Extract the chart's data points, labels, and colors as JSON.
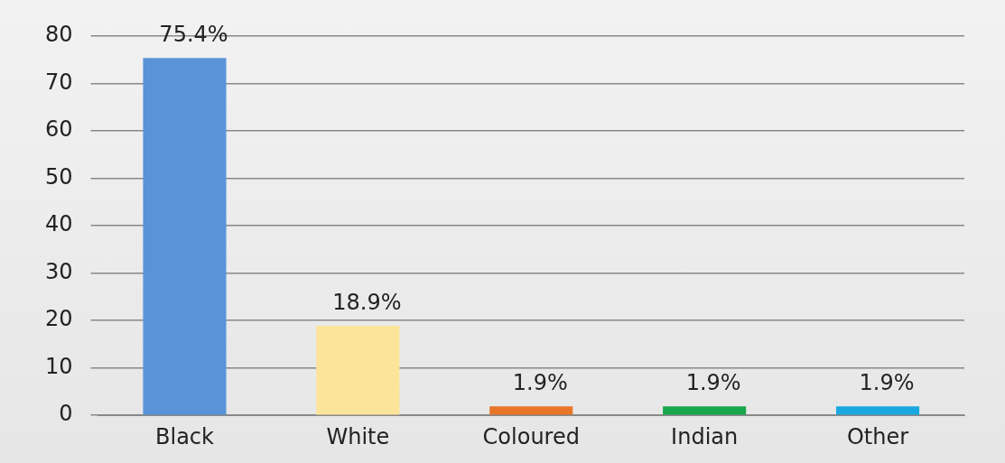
{
  "chart_data": {
    "type": "bar",
    "categories": [
      "Black",
      "White",
      "Coloured",
      "Indian",
      "Other"
    ],
    "values": [
      75.4,
      18.9,
      1.9,
      1.9,
      1.9
    ],
    "colors": [
      "#5b93d8",
      "#fce59a",
      "#e8762a",
      "#1aa64a",
      "#1ba8e0"
    ],
    "value_labels": [
      "75.4%",
      "18.9%",
      "1.9%",
      "1.9%",
      "1.9%"
    ],
    "ylim": [
      0,
      80
    ],
    "yticks": [
      0,
      10,
      20,
      30,
      40,
      50,
      60,
      70,
      80
    ],
    "grid": "y"
  }
}
